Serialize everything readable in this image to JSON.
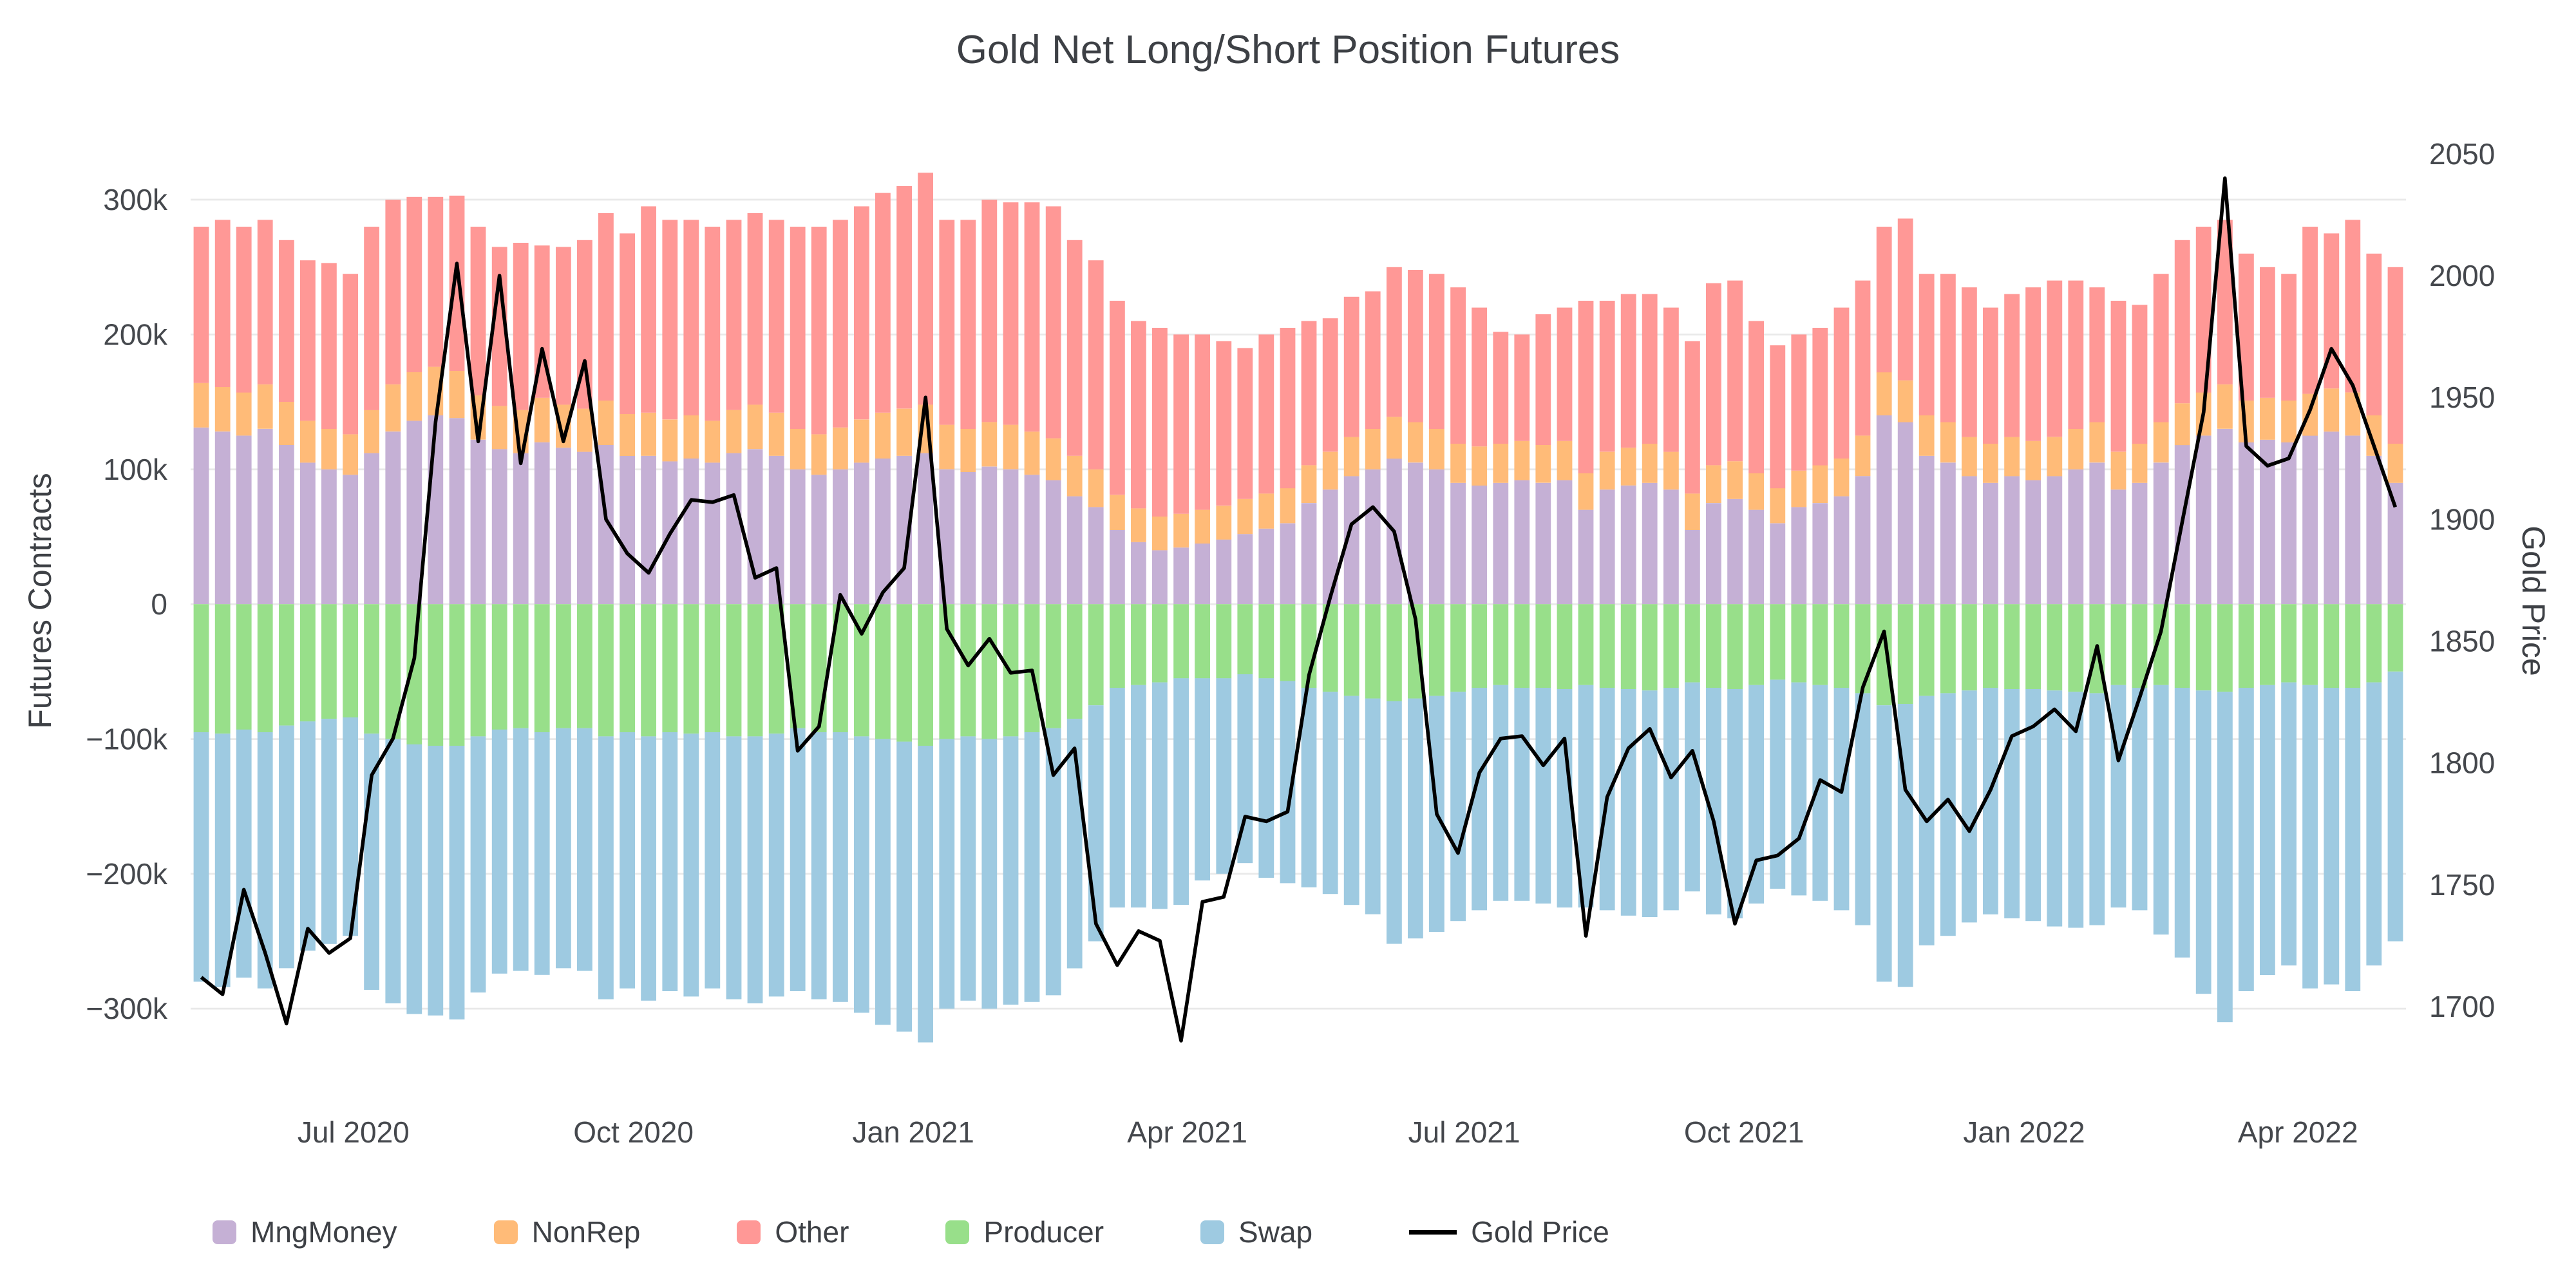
{
  "chart_data": {
    "type": "bar+line",
    "title": "Gold Net Long/Short Position Futures",
    "ylabel_left": "Futures Contracts",
    "ylabel_right": "Gold Price",
    "legend_position": "bottom",
    "grid": "horizontal-light",
    "background": "#ffffff",
    "bar_value_unit": "thousand contracts (stacked net long/short futures positions)",
    "left_ylim_k": [
      -340,
      343
    ],
    "right_ylim": [
      1677,
      2055
    ],
    "y_ticks_left": [
      {
        "value": 300,
        "label": "300k"
      },
      {
        "value": 200,
        "label": "200k"
      },
      {
        "value": 100,
        "label": "100k"
      },
      {
        "value": 0,
        "label": "0"
      },
      {
        "value": -100,
        "label": "−100k"
      },
      {
        "value": -200,
        "label": "−200k"
      },
      {
        "value": -300,
        "label": "−300k"
      }
    ],
    "y_ticks_right": [
      {
        "value": 1700,
        "label": "1700"
      },
      {
        "value": 1750,
        "label": "1750"
      },
      {
        "value": 1800,
        "label": "1800"
      },
      {
        "value": 1850,
        "label": "1850"
      },
      {
        "value": 1900,
        "label": "1900"
      },
      {
        "value": 1950,
        "label": "1950"
      },
      {
        "value": 2000,
        "label": "2000"
      },
      {
        "value": 2050,
        "label": "2050"
      }
    ],
    "x_ticks": [
      {
        "label": "Jul 2020",
        "date": "2020-07-01"
      },
      {
        "label": "Oct 2020",
        "date": "2020-10-01"
      },
      {
        "label": "Jan 2021",
        "date": "2021-01-01"
      },
      {
        "label": "Apr 2021",
        "date": "2021-04-01"
      },
      {
        "label": "Jul 2021",
        "date": "2021-07-01"
      },
      {
        "label": "Oct 2021",
        "date": "2021-10-01"
      },
      {
        "label": "Jan 2022",
        "date": "2022-01-01"
      },
      {
        "label": "Apr 2022",
        "date": "2022-04-01"
      }
    ],
    "dates": [
      "2020-05-12",
      "2020-05-19",
      "2020-05-26",
      "2020-06-02",
      "2020-06-09",
      "2020-06-16",
      "2020-06-23",
      "2020-06-30",
      "2020-07-07",
      "2020-07-14",
      "2020-07-21",
      "2020-07-28",
      "2020-08-04",
      "2020-08-11",
      "2020-08-18",
      "2020-08-25",
      "2020-09-01",
      "2020-09-08",
      "2020-09-15",
      "2020-09-22",
      "2020-09-29",
      "2020-10-06",
      "2020-10-13",
      "2020-10-20",
      "2020-10-27",
      "2020-11-03",
      "2020-11-10",
      "2020-11-17",
      "2020-11-24",
      "2020-12-01",
      "2020-12-08",
      "2020-12-15",
      "2020-12-22",
      "2020-12-29",
      "2021-01-05",
      "2021-01-12",
      "2021-01-19",
      "2021-01-26",
      "2021-02-02",
      "2021-02-09",
      "2021-02-16",
      "2021-02-23",
      "2021-03-02",
      "2021-03-09",
      "2021-03-16",
      "2021-03-23",
      "2021-03-30",
      "2021-04-06",
      "2021-04-13",
      "2021-04-20",
      "2021-04-27",
      "2021-05-04",
      "2021-05-11",
      "2021-05-18",
      "2021-05-25",
      "2021-06-01",
      "2021-06-08",
      "2021-06-15",
      "2021-06-22",
      "2021-06-29",
      "2021-07-06",
      "2021-07-13",
      "2021-07-20",
      "2021-07-27",
      "2021-08-03",
      "2021-08-10",
      "2021-08-17",
      "2021-08-24",
      "2021-08-31",
      "2021-09-07",
      "2021-09-14",
      "2021-09-21",
      "2021-09-28",
      "2021-10-05",
      "2021-10-12",
      "2021-10-19",
      "2021-10-26",
      "2021-11-02",
      "2021-11-09",
      "2021-11-16",
      "2021-11-23",
      "2021-11-30",
      "2021-12-07",
      "2021-12-14",
      "2021-12-21",
      "2021-12-28",
      "2022-01-04",
      "2022-01-11",
      "2022-01-18",
      "2022-01-25",
      "2022-02-01",
      "2022-02-08",
      "2022-02-15",
      "2022-02-22",
      "2022-03-01",
      "2022-03-08",
      "2022-03-15",
      "2022-03-22",
      "2022-03-29",
      "2022-04-05",
      "2022-04-12",
      "2022-04-19",
      "2022-04-26",
      "2022-05-03"
    ],
    "series": [
      {
        "name": "MngMoney",
        "color": "#c5b0d5",
        "values": [
          131,
          128,
          125,
          130,
          118,
          105,
          100,
          96,
          112,
          128,
          136,
          140,
          138,
          122,
          115,
          112,
          120,
          116,
          113,
          118,
          110,
          110,
          106,
          108,
          105,
          112,
          115,
          110,
          100,
          96,
          100,
          105,
          108,
          110,
          112,
          100,
          98,
          102,
          100,
          96,
          92,
          80,
          72,
          55,
          46,
          40,
          42,
          45,
          48,
          52,
          56,
          60,
          75,
          85,
          95,
          100,
          108,
          105,
          100,
          90,
          88,
          90,
          92,
          90,
          92,
          70,
          85,
          88,
          90,
          85,
          55,
          75,
          78,
          70,
          60,
          72,
          75,
          80,
          95,
          140,
          135,
          110,
          105,
          95,
          90,
          95,
          92,
          95,
          100,
          105,
          85,
          90,
          105,
          118,
          125,
          130,
          120,
          122,
          120,
          125,
          128,
          125,
          110,
          90
        ]
      },
      {
        "name": "NonRep",
        "color": "#ffbb78",
        "values": [
          33,
          33,
          32,
          33,
          32,
          31,
          30,
          30,
          32,
          35,
          36,
          36,
          35,
          33,
          32,
          32,
          33,
          32,
          32,
          33,
          31,
          32,
          31,
          32,
          31,
          32,
          33,
          32,
          30,
          30,
          31,
          32,
          34,
          35,
          36,
          33,
          32,
          33,
          33,
          32,
          31,
          30,
          28,
          26,
          25,
          25,
          25,
          25,
          25,
          26,
          26,
          26,
          28,
          28,
          29,
          30,
          31,
          30,
          30,
          29,
          29,
          29,
          29,
          28,
          29,
          27,
          28,
          28,
          29,
          28,
          27,
          28,
          28,
          27,
          26,
          27,
          28,
          28,
          30,
          32,
          31,
          30,
          30,
          29,
          29,
          29,
          29,
          29,
          30,
          30,
          28,
          29,
          30,
          31,
          32,
          33,
          31,
          31,
          31,
          31,
          32,
          32,
          30,
          29
        ]
      },
      {
        "name": "Other",
        "color": "#ff9896",
        "values": [
          116,
          124,
          123,
          122,
          120,
          119,
          123,
          119,
          136,
          137,
          130,
          126,
          130,
          125,
          118,
          124,
          113,
          117,
          125,
          139,
          134,
          153,
          148,
          145,
          144,
          141,
          142,
          143,
          150,
          154,
          154,
          158,
          163,
          165,
          172,
          152,
          155,
          165,
          165,
          170,
          172,
          160,
          155,
          144,
          139,
          140,
          133,
          130,
          122,
          112,
          118,
          119,
          107,
          99,
          104,
          102,
          111,
          113,
          115,
          116,
          103,
          83,
          79,
          97,
          99,
          128,
          112,
          114,
          111,
          107,
          113,
          135,
          134,
          113,
          106,
          101,
          102,
          112,
          115,
          108,
          120,
          105,
          110,
          111,
          101,
          106,
          114,
          116,
          110,
          100,
          112,
          103,
          110,
          121,
          123,
          122,
          109,
          97,
          94,
          124,
          115,
          128,
          120,
          131
        ]
      },
      {
        "name": "Producer",
        "color": "#98df8a",
        "values": [
          -95,
          -96,
          -93,
          -95,
          -90,
          -87,
          -85,
          -84,
          -96,
          -100,
          -104,
          -105,
          -105,
          -98,
          -93,
          -92,
          -95,
          -92,
          -92,
          -98,
          -95,
          -98,
          -95,
          -96,
          -95,
          -98,
          -98,
          -96,
          -92,
          -95,
          -95,
          -98,
          -100,
          -102,
          -105,
          -100,
          -98,
          -100,
          -98,
          -95,
          -92,
          -85,
          -75,
          -62,
          -60,
          -58,
          -55,
          -55,
          -55,
          -52,
          -55,
          -57,
          -62,
          -65,
          -68,
          -70,
          -72,
          -70,
          -68,
          -65,
          -62,
          -60,
          -62,
          -62,
          -63,
          -60,
          -62,
          -63,
          -64,
          -62,
          -58,
          -62,
          -63,
          -60,
          -56,
          -58,
          -60,
          -62,
          -66,
          -75,
          -74,
          -68,
          -66,
          -64,
          -62,
          -63,
          -63,
          -64,
          -65,
          -66,
          -60,
          -62,
          -60,
          -62,
          -64,
          -65,
          -62,
          -60,
          -58,
          -60,
          -62,
          -62,
          -58,
          -50
        ]
      },
      {
        "name": "Swap",
        "color": "#9ecae1",
        "values": [
          -185,
          -188,
          -184,
          -190,
          -180,
          -170,
          -167,
          -162,
          -190,
          -196,
          -200,
          -200,
          -203,
          -190,
          -181,
          -180,
          -180,
          -178,
          -180,
          -195,
          -190,
          -196,
          -192,
          -195,
          -190,
          -195,
          -198,
          -195,
          -195,
          -198,
          -200,
          -205,
          -212,
          -215,
          -220,
          -200,
          -196,
          -200,
          -199,
          -200,
          -198,
          -185,
          -175,
          -163,
          -165,
          -168,
          -168,
          -150,
          -145,
          -140,
          -148,
          -150,
          -148,
          -150,
          -155,
          -160,
          -180,
          -178,
          -175,
          -170,
          -165,
          -160,
          -158,
          -160,
          -162,
          -165,
          -165,
          -168,
          -168,
          -165,
          -155,
          -168,
          -170,
          -162,
          -155,
          -158,
          -160,
          -165,
          -172,
          -205,
          -210,
          -185,
          -180,
          -172,
          -168,
          -170,
          -172,
          -175,
          -175,
          -172,
          -165,
          -165,
          -185,
          -200,
          -225,
          -245,
          -225,
          -215,
          -210,
          -225,
          -220,
          -225,
          -210,
          -200
        ]
      }
    ],
    "line": {
      "name": "Gold Price",
      "color": "#000000",
      "values": [
        1712,
        1705,
        1748,
        1722,
        1693,
        1732,
        1722,
        1728,
        1795,
        1810,
        1843,
        1940,
        2005,
        1932,
        2000,
        1923,
        1970,
        1932,
        1965,
        1900,
        1886,
        1878,
        1894,
        1908,
        1907,
        1910,
        1876,
        1880,
        1805,
        1815,
        1869,
        1853,
        1870,
        1880,
        1950,
        1855,
        1840,
        1851,
        1837,
        1838,
        1795,
        1806,
        1734,
        1717,
        1731,
        1727,
        1686,
        1743,
        1745,
        1778,
        1776,
        1780,
        1836,
        1868,
        1898,
        1905,
        1895,
        1859,
        1779,
        1763,
        1796,
        1810,
        1811,
        1799,
        1810,
        1729,
        1786,
        1806,
        1814,
        1794,
        1805,
        1776,
        1734,
        1760,
        1762,
        1769,
        1793,
        1788,
        1831,
        1854,
        1789,
        1776,
        1785,
        1772,
        1789,
        1811,
        1815,
        1822,
        1813,
        1848,
        1801,
        1827,
        1854,
        1899,
        1944,
        2040,
        1930,
        1922,
        1925,
        1945,
        1970,
        1955,
        1930,
        1905
      ]
    }
  }
}
